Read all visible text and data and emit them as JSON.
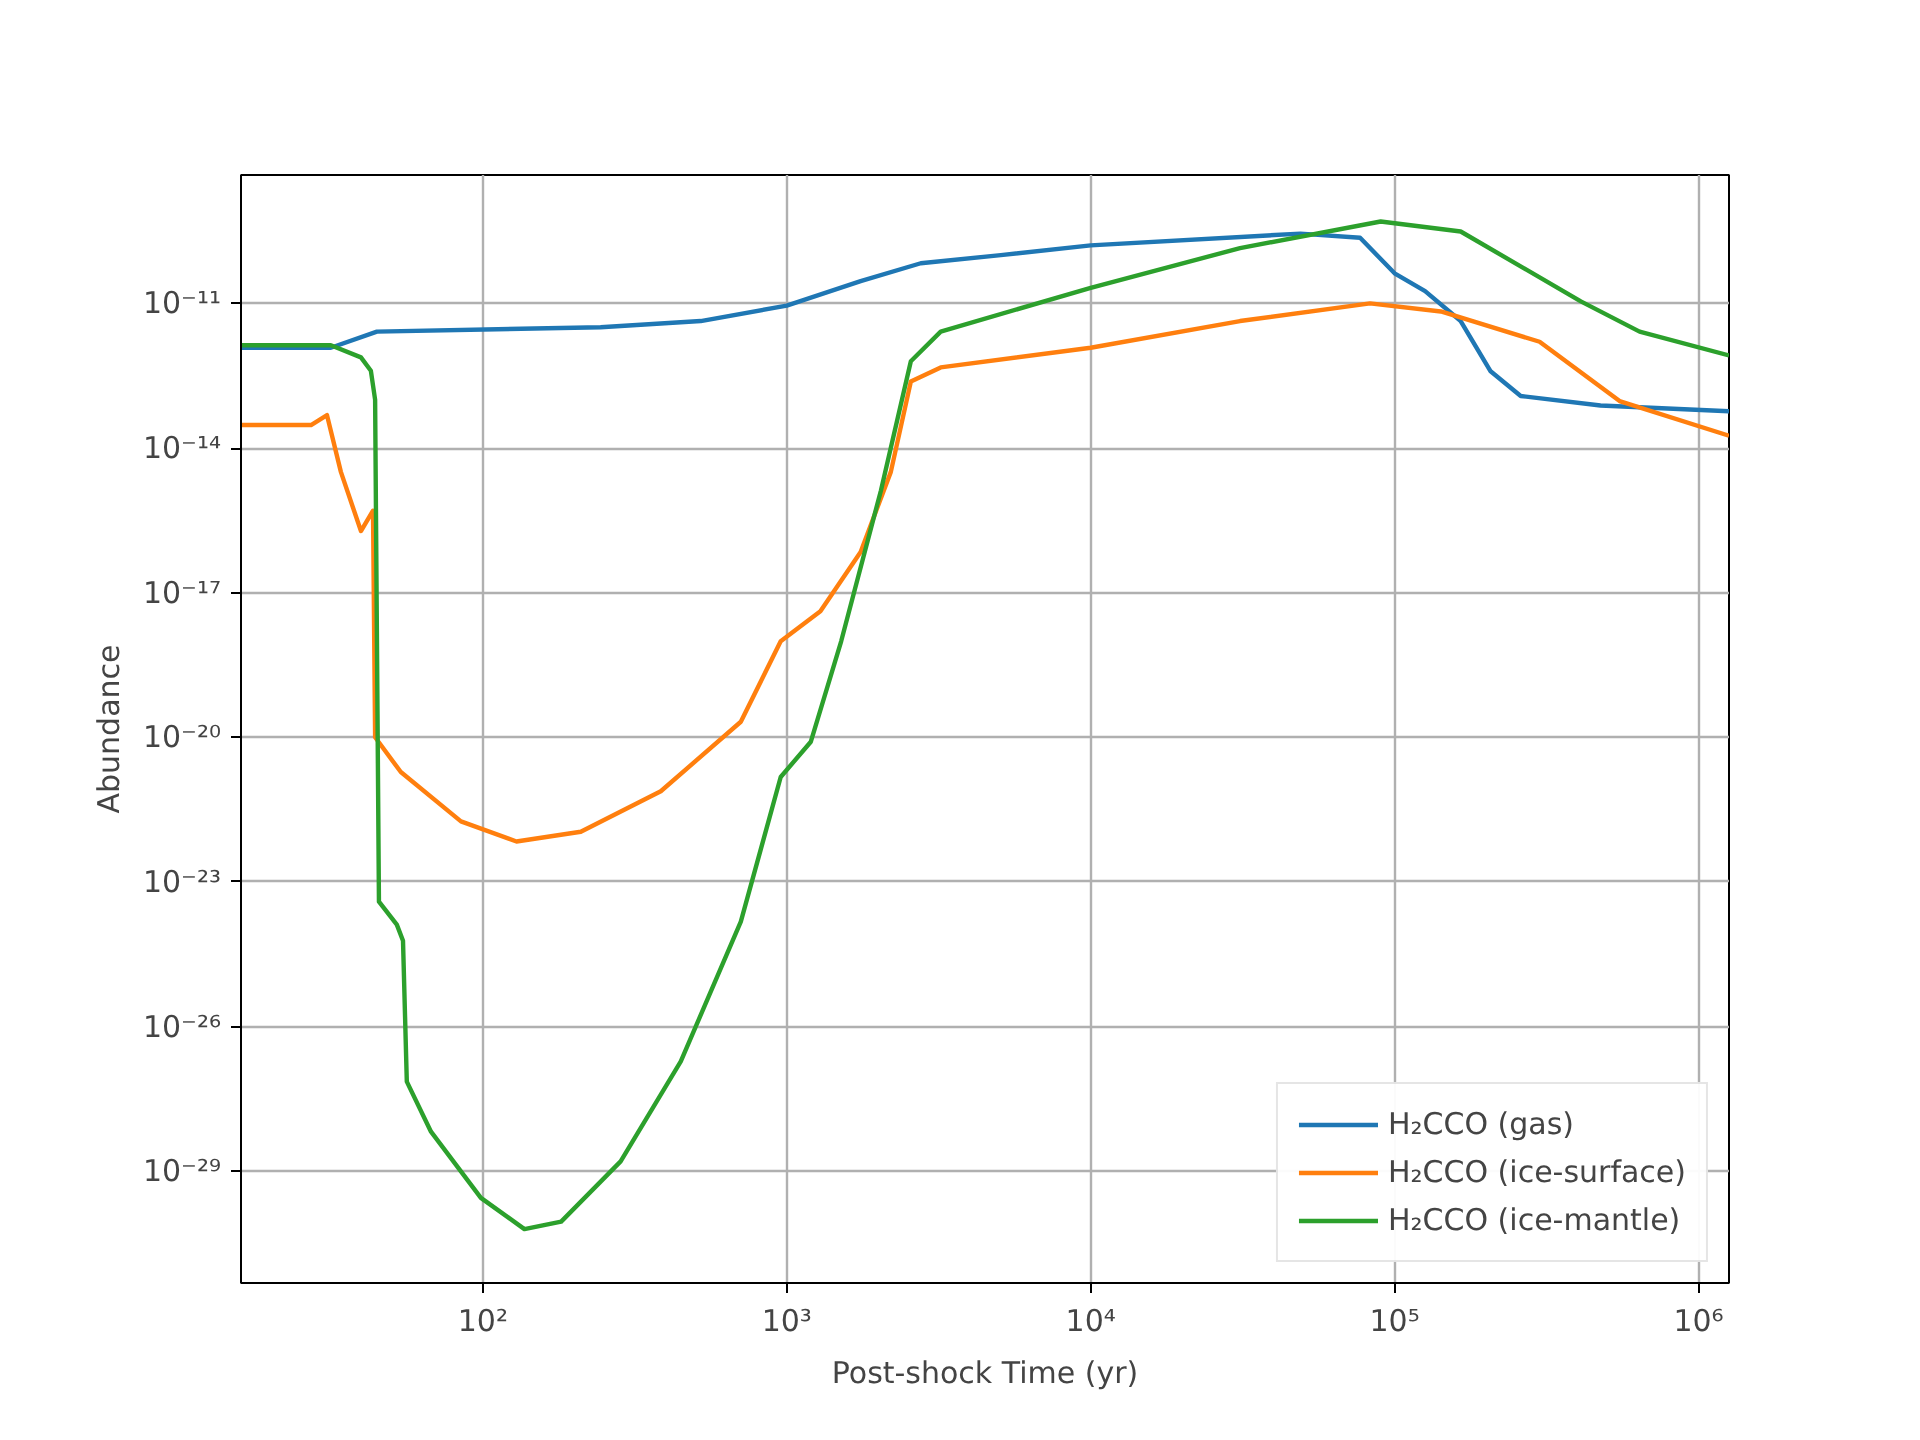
{
  "chart_data": {
    "type": "line",
    "xlabel": "Post-shock Time (yr)",
    "ylabel": "Abundance",
    "log": "xy",
    "grid": true,
    "legend": "bottom right",
    "xlim": [
      16,
      1260000
    ],
    "ylim": [
      4.8e-32,
      4.6e-09
    ],
    "xticks": [
      {
        "value": 100,
        "label": "10²"
      },
      {
        "value": 1000,
        "label": "10³"
      },
      {
        "value": 10000,
        "label": "10⁴"
      },
      {
        "value": 100000,
        "label": "10⁵"
      },
      {
        "value": 1000000,
        "label": "10⁶"
      }
    ],
    "yticks": [
      {
        "value": 1e-29,
        "label": "10⁻²⁹"
      },
      {
        "value": 1e-26,
        "label": "10⁻²⁶"
      },
      {
        "value": 1e-23,
        "label": "10⁻²³"
      },
      {
        "value": 1e-20,
        "label": "10⁻²⁰"
      },
      {
        "value": 1e-17,
        "label": "10⁻¹⁷"
      },
      {
        "value": 1e-14,
        "label": "10⁻¹⁴"
      },
      {
        "value": 1e-11,
        "label": "10⁻¹¹"
      }
    ],
    "series": [
      {
        "name": "H₂CCO (gas)",
        "color": "#1f77b4",
        "x": [
          16,
          31.6,
          44.8,
          244,
          521,
          1000,
          1750,
          2760,
          5060,
          10000,
          49000,
          77000,
          100000,
          126000,
          165000,
          207000,
          260000,
          476000,
          1260000
        ],
        "values": [
          1.2e-12,
          1.2e-12,
          2.6e-12,
          3.2e-12,
          4.3e-12,
          9e-12,
          2.9e-11,
          6.8e-11,
          1e-10,
          1.6e-10,
          2.8e-10,
          2.3e-10,
          4.2e-11,
          1.8e-11,
          4.3e-12,
          3.9e-13,
          1.2e-13,
          7.6e-14,
          5.8e-14
        ]
      },
      {
        "name": "H₂CCO (ice-surface)",
        "color": "#ff7f0e",
        "x": [
          16,
          27.2,
          30.7,
          34.1,
          39.7,
          43.5,
          44.2,
          53.7,
          84.7,
          129,
          210,
          385,
          706,
          955,
          1290,
          1750,
          2200,
          2560,
          3210,
          10000,
          31000,
          83000,
          142000,
          300000,
          550000,
          1260000
        ],
        "values": [
          3e-14,
          3e-14,
          4.8e-14,
          3.2e-15,
          1.9e-16,
          5e-16,
          1e-20,
          1.9e-21,
          1.8e-22,
          6.9e-23,
          1.1e-22,
          7.6e-22,
          2.1e-20,
          9.8e-19,
          4.1e-18,
          7e-17,
          3.2e-15,
          2.4e-13,
          4.7e-13,
          1.2e-12,
          4.3e-12,
          1e-11,
          6.8e-12,
          1.6e-12,
          9.4e-14,
          1.8e-14
        ]
      },
      {
        "name": "H₂CCO (ice-mantle)",
        "color": "#2ca02c",
        "x": [
          16,
          31.6,
          39.7,
          42.8,
          44.2,
          45.5,
          52.1,
          54.6,
          56.2,
          67.5,
          98.5,
          137,
          181,
          284,
          448,
          706,
          955,
          1200,
          1510,
          2040,
          2560,
          3210,
          10000,
          31000,
          90000,
          165000,
          410000,
          640000,
          1260000
        ],
        "values": [
          1.35e-12,
          1.35e-12,
          7.6e-13,
          4e-13,
          1e-13,
          3.9e-24,
          1.3e-24,
          6e-25,
          7.2e-28,
          6.6e-29,
          2.8e-30,
          6.3e-31,
          9e-31,
          1.6e-29,
          1.9e-27,
          1.5e-24,
          1.5e-21,
          8.1e-21,
          9.8e-19,
          1.3e-15,
          6.3e-13,
          2.6e-12,
          2.1e-11,
          1.4e-10,
          5e-10,
          3.1e-10,
          1.1e-11,
          2.6e-12,
          8.3e-13
        ]
      }
    ]
  }
}
